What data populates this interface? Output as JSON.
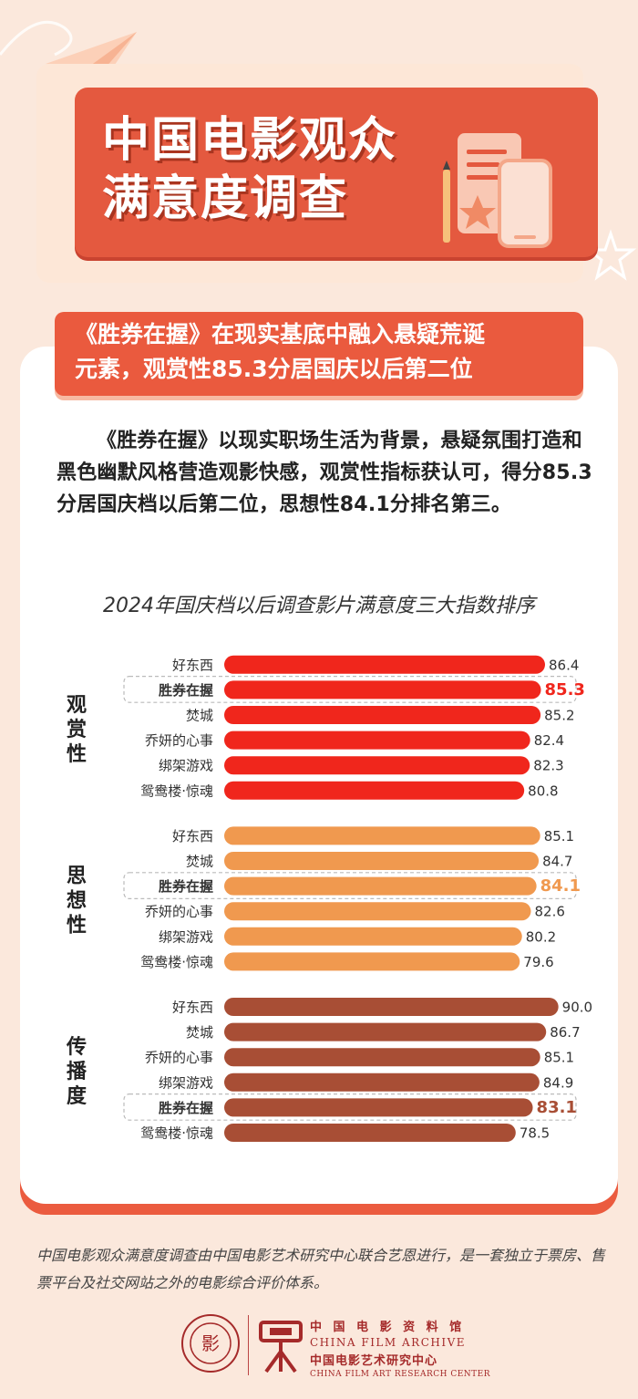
{
  "header": {
    "title_line1": "中国电影观众",
    "title_line2": "满意度调查"
  },
  "ribbon": {
    "line1": "《胜券在握》在现实基底中融入悬疑荒诞",
    "line2": "元素，观赏性85.3分居国庆以后第二位"
  },
  "paragraph": "《胜券在握》以现实职场生活为背景，悬疑氛围打造和黑色幽默风格营造观影快感，观赏性指标获认可，得分85.3分居国庆档以后第二位，思想性84.1分排名第三。",
  "chart_title": "2024年国庆档以后调查影片满意度三大指数排序",
  "colors": {
    "group1": "#f0261c",
    "group2": "#f0994f",
    "group3": "#a84e35",
    "highlight_text": "#f0261c"
  },
  "chart_data": {
    "type": "bar",
    "orientation": "horizontal",
    "xlim": [
      0,
      95
    ],
    "highlight": "胜券在握",
    "groups": [
      {
        "label": "观赏性",
        "color": "#f0261c",
        "items": [
          {
            "name": "好东西",
            "value": 86.4
          },
          {
            "name": "胜券在握",
            "value": 85.3
          },
          {
            "name": "焚城",
            "value": 85.2
          },
          {
            "name": "乔妍的心事",
            "value": 82.4
          },
          {
            "name": "绑架游戏",
            "value": 82.3
          },
          {
            "name": "鸳鸯楼·惊魂",
            "value": 80.8
          }
        ]
      },
      {
        "label": "思想性",
        "color": "#f0994f",
        "items": [
          {
            "name": "好东西",
            "value": 85.1
          },
          {
            "name": "焚城",
            "value": 84.7
          },
          {
            "name": "胜券在握",
            "value": 84.1
          },
          {
            "name": "乔妍的心事",
            "value": 82.6
          },
          {
            "name": "绑架游戏",
            "value": 80.2
          },
          {
            "name": "鸳鸯楼·惊魂",
            "value": 79.6
          }
        ]
      },
      {
        "label": "传播度",
        "color": "#a84e35",
        "items": [
          {
            "name": "好东西",
            "value": 90.0
          },
          {
            "name": "焚城",
            "value": 86.7
          },
          {
            "name": "乔妍的心事",
            "value": 85.1
          },
          {
            "name": "绑架游戏",
            "value": 84.9
          },
          {
            "name": "胜券在握",
            "value": 83.1
          },
          {
            "name": "鸳鸯楼·惊魂",
            "value": 78.5
          }
        ]
      }
    ]
  },
  "footnote": "中国电影观众满意度调查由中国电影艺术研究中心联合艺恩进行，是一套独立于票房、售票平台及社交网站之外的电影综合评价体系。",
  "logo": {
    "cn_name": "中 国 电 影 资 料 馆",
    "en_name": "CHINA FILM ARCHIVE",
    "cn_center": "中国电影艺术研究中心",
    "en_center": "CHINA FILM ART RESEARCH CENTER",
    "left_emblem_char": "影"
  }
}
